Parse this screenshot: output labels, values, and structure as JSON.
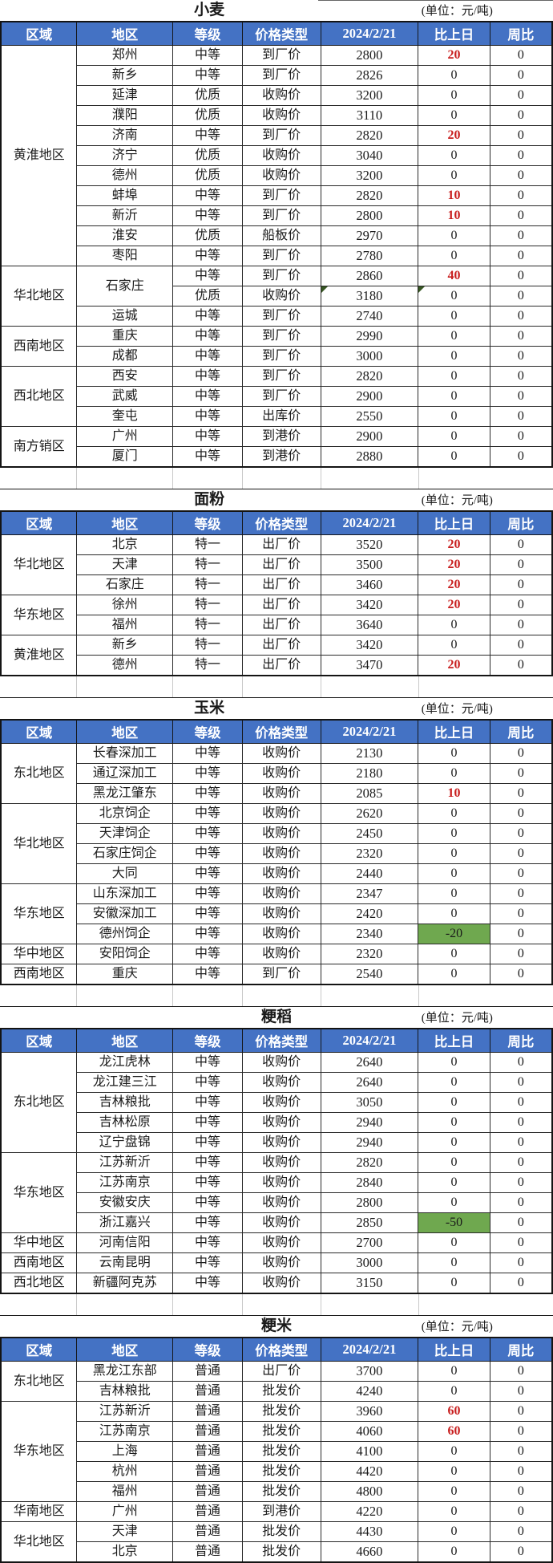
{
  "unit_label": "(单位：元/吨)",
  "columns": [
    "区域",
    "地区",
    "等级",
    "价格类型",
    "2024/2/21",
    "比上日",
    "周比"
  ],
  "colors": {
    "header_bg": "#4472C4",
    "header_text": "#FFFFFF",
    "positive_change_text": "#C81E1E",
    "negative_change_bg": "#6FA84F",
    "comment_triangle": "#375623"
  },
  "sections": [
    {
      "title": "小麦",
      "groups": [
        {
          "region": "黄淮地区",
          "rows": [
            [
              "郑州",
              "中等",
              "到厂价",
              2800,
              20,
              0
            ],
            [
              "新乡",
              "中等",
              "到厂价",
              2826,
              0,
              0
            ],
            [
              "延津",
              "优质",
              "收购价",
              3200,
              0,
              0
            ],
            [
              "濮阳",
              "优质",
              "收购价",
              3110,
              0,
              0
            ],
            [
              "济南",
              "中等",
              "到厂价",
              2820,
              20,
              0
            ],
            [
              "济宁",
              "优质",
              "收购价",
              3040,
              0,
              0
            ],
            [
              "德州",
              "优质",
              "收购价",
              3200,
              0,
              0
            ],
            [
              "蚌埠",
              "中等",
              "到厂价",
              2820,
              10,
              0
            ],
            [
              "新沂",
              "中等",
              "到厂价",
              2800,
              10,
              0
            ],
            [
              "淮安",
              "优质",
              "船板价",
              2970,
              0,
              0
            ],
            [
              "枣阳",
              "中等",
              "到厂价",
              2780,
              0,
              0
            ]
          ]
        },
        {
          "region": "华北地区",
          "rows": [
            [
              "石家庄",
              "中等",
              "到厂价",
              2860,
              40,
              0,
              {
                "span": 2
              }
            ],
            [
              null,
              "优质",
              "收购价",
              3180,
              0,
              0,
              {
                "notes": [
                  "price",
                  "chg"
                ]
              }
            ],
            [
              "运城",
              "中等",
              "到厂价",
              2740,
              0,
              0
            ]
          ]
        },
        {
          "region": "西南地区",
          "rows": [
            [
              "重庆",
              "中等",
              "到厂价",
              2990,
              0,
              0
            ],
            [
              "成都",
              "中等",
              "到厂价",
              3000,
              0,
              0
            ]
          ]
        },
        {
          "region": "西北地区",
          "rows": [
            [
              "西安",
              "中等",
              "到厂价",
              2820,
              0,
              0
            ],
            [
              "武威",
              "中等",
              "到厂价",
              2900,
              0,
              0
            ],
            [
              "奎屯",
              "中等",
              "出库价",
              2550,
              0,
              0
            ]
          ]
        },
        {
          "region": "南方销区",
          "rows": [
            [
              "广州",
              "中等",
              "到港价",
              2900,
              0,
              0
            ],
            [
              "厦门",
              "中等",
              "到港价",
              2880,
              0,
              0
            ]
          ]
        }
      ]
    },
    {
      "title": "面粉",
      "groups": [
        {
          "region": "华北地区",
          "rows": [
            [
              "北京",
              "特一",
              "出厂价",
              3520,
              20,
              0
            ],
            [
              "天津",
              "特一",
              "出厂价",
              3500,
              20,
              0
            ],
            [
              "石家庄",
              "特一",
              "出厂价",
              3460,
              20,
              0
            ]
          ]
        },
        {
          "region": "华东地区",
          "rows": [
            [
              "徐州",
              "特一",
              "出厂价",
              3420,
              20,
              0
            ],
            [
              "福州",
              "特一",
              "出厂价",
              3640,
              0,
              0
            ]
          ]
        },
        {
          "region": "黄淮地区",
          "rows": [
            [
              "新乡",
              "特一",
              "出厂价",
              3420,
              0,
              0
            ],
            [
              "德州",
              "特一",
              "出厂价",
              3470,
              20,
              0
            ]
          ]
        }
      ]
    },
    {
      "title": "玉米",
      "groups": [
        {
          "region": "东北地区",
          "rows": [
            [
              "长春深加工",
              "中等",
              "收购价",
              2130,
              0,
              0
            ],
            [
              "通辽深加工",
              "中等",
              "收购价",
              2180,
              0,
              0
            ],
            [
              "黑龙江肇东",
              "中等",
              "收购价",
              2085,
              10,
              0
            ]
          ]
        },
        {
          "region": "华北地区",
          "rows": [
            [
              "北京饲企",
              "中等",
              "收购价",
              2620,
              0,
              0
            ],
            [
              "天津饲企",
              "中等",
              "收购价",
              2450,
              0,
              0
            ],
            [
              "石家庄饲企",
              "中等",
              "收购价",
              2320,
              0,
              0
            ],
            [
              "大同",
              "中等",
              "收购价",
              2440,
              0,
              0
            ]
          ]
        },
        {
          "region": "华东地区",
          "rows": [
            [
              "山东深加工",
              "中等",
              "收购价",
              2347,
              0,
              0
            ],
            [
              "安徽深加工",
              "中等",
              "收购价",
              2420,
              0,
              0
            ],
            [
              "德州饲企",
              "中等",
              "收购价",
              2340,
              -20,
              0
            ]
          ]
        },
        {
          "region": "华中地区",
          "rows": [
            [
              "安阳饲企",
              "中等",
              "收购价",
              2320,
              0,
              0
            ]
          ]
        },
        {
          "region": "西南地区",
          "rows": [
            [
              "重庆",
              "中等",
              "到厂价",
              2540,
              0,
              0
            ]
          ]
        }
      ]
    },
    {
      "title": "粳稻",
      "groups": [
        {
          "region": "东北地区",
          "rows": [
            [
              "龙江虎林",
              "中等",
              "收购价",
              2640,
              0,
              0
            ],
            [
              "龙江建三江",
              "中等",
              "收购价",
              2640,
              0,
              0
            ],
            [
              "吉林粮批",
              "中等",
              "收购价",
              3050,
              0,
              0
            ],
            [
              "吉林松原",
              "中等",
              "收购价",
              2940,
              0,
              0
            ],
            [
              "辽宁盘锦",
              "中等",
              "收购价",
              2940,
              0,
              0
            ]
          ]
        },
        {
          "region": "华东地区",
          "rows": [
            [
              "江苏新沂",
              "中等",
              "收购价",
              2820,
              0,
              0
            ],
            [
              "江苏南京",
              "中等",
              "收购价",
              2840,
              0,
              0
            ],
            [
              "安徽安庆",
              "中等",
              "收购价",
              2800,
              0,
              0
            ],
            [
              "浙江嘉兴",
              "中等",
              "收购价",
              2850,
              -50,
              0
            ]
          ]
        },
        {
          "region": "华中地区",
          "rows": [
            [
              "河南信阳",
              "中等",
              "收购价",
              2700,
              0,
              0
            ]
          ]
        },
        {
          "region": "西南地区",
          "rows": [
            [
              "云南昆明",
              "中等",
              "收购价",
              3000,
              0,
              0
            ]
          ]
        },
        {
          "region": "西北地区",
          "rows": [
            [
              "新疆阿克苏",
              "中等",
              "收购价",
              3150,
              0,
              0
            ]
          ]
        }
      ]
    },
    {
      "title": "粳米",
      "groups": [
        {
          "region": "东北地区",
          "rows": [
            [
              "黑龙江东部",
              "普通",
              "出厂价",
              3700,
              0,
              0
            ],
            [
              "吉林粮批",
              "普通",
              "批发价",
              4240,
              0,
              0
            ]
          ]
        },
        {
          "region": "华东地区",
          "rows": [
            [
              "江苏新沂",
              "普通",
              "批发价",
              3960,
              60,
              0
            ],
            [
              "江苏南京",
              "普通",
              "批发价",
              4060,
              60,
              0
            ],
            [
              "上海",
              "普通",
              "批发价",
              4100,
              0,
              0
            ],
            [
              "杭州",
              "普通",
              "批发价",
              4420,
              0,
              0
            ],
            [
              "福州",
              "普通",
              "批发价",
              4800,
              0,
              0
            ]
          ]
        },
        {
          "region": "华南地区",
          "rows": [
            [
              "广州",
              "普通",
              "到港价",
              4220,
              0,
              0
            ]
          ]
        },
        {
          "region": "华北地区",
          "rows": [
            [
              "天津",
              "普通",
              "批发价",
              4430,
              0,
              0
            ],
            [
              "北京",
              "普通",
              "批发价",
              4660,
              0,
              0
            ]
          ]
        }
      ]
    }
  ]
}
